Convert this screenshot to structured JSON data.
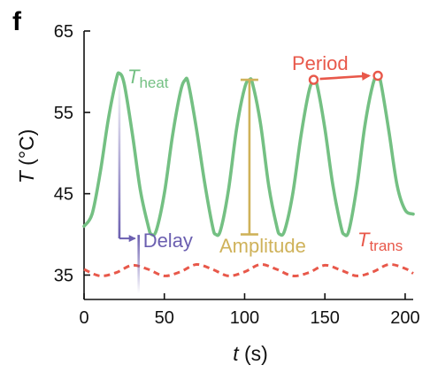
{
  "panel_label": "f",
  "colors": {
    "heat": "#74c083",
    "trans": "#e8584a",
    "period": "#e8584a",
    "delay": "#6b5fb0",
    "amplitude": "#cfb25a",
    "axis": "#111111"
  },
  "chart_data": {
    "type": "line",
    "xlabel": "t (s)",
    "xlabel_var": "t",
    "xlabel_unit": " (s)",
    "ylabel": "T (°C)",
    "ylabel_var": "T",
    "ylabel_unit": " (°C)",
    "xlim": [
      0,
      205
    ],
    "ylim": [
      32,
      65
    ],
    "x_ticks": [
      0,
      50,
      100,
      150,
      200
    ],
    "y_ticks": [
      35,
      45,
      55,
      65
    ],
    "grid": false,
    "series": [
      {
        "name": "T_heat",
        "label_main": "T",
        "label_sub": "heat",
        "style": "solid",
        "x": [
          0,
          5,
          10,
          15,
          20,
          22,
          25,
          30,
          35,
          40,
          42,
          45,
          50,
          55,
          60,
          63,
          65,
          70,
          75,
          80,
          82,
          85,
          90,
          95,
          100,
          103,
          105,
          110,
          115,
          120,
          122,
          125,
          130,
          135,
          140,
          143,
          145,
          150,
          155,
          160,
          162,
          165,
          170,
          175,
          180,
          183,
          185,
          190,
          195,
          200,
          205
        ],
        "y": [
          41.0,
          42.5,
          47.5,
          54.0,
          59.0,
          59.8,
          58.5,
          52.5,
          45.5,
          41.0,
          40.0,
          40.5,
          45.0,
          52.0,
          57.5,
          59.0,
          58.5,
          53.0,
          46.5,
          41.0,
          40.0,
          40.5,
          45.5,
          53.0,
          58.0,
          59.0,
          58.5,
          53.5,
          46.0,
          41.0,
          40.0,
          40.5,
          45.0,
          52.0,
          57.5,
          59.0,
          58.5,
          53.0,
          46.0,
          41.0,
          40.0,
          40.5,
          46.0,
          53.5,
          58.5,
          59.5,
          58.5,
          52.5,
          46.0,
          43.0,
          42.5
        ]
      },
      {
        "name": "T_trans",
        "label_main": "T",
        "label_sub": "trans",
        "style": "dashed",
        "x": [
          0,
          10,
          20,
          30,
          40,
          50,
          60,
          70,
          80,
          90,
          100,
          110,
          120,
          130,
          140,
          150,
          160,
          170,
          180,
          190,
          200,
          205
        ],
        "y": [
          35.7,
          34.9,
          35.3,
          36.2,
          35.7,
          34.9,
          35.4,
          36.3,
          35.7,
          34.9,
          35.4,
          36.3,
          35.7,
          34.9,
          35.3,
          36.2,
          35.6,
          34.9,
          35.4,
          36.3,
          35.8,
          35.2
        ]
      }
    ],
    "annotations": {
      "period": {
        "label": "Period",
        "from": [
          143,
          59.0
        ],
        "to": [
          183,
          59.5
        ]
      },
      "amplitude": {
        "label": "Amplitude",
        "x": 103,
        "y_top": 59.0,
        "y_bottom": 40.0
      },
      "delay": {
        "label": "Delay",
        "x_heat": 22,
        "y_heat_peak": 59.8,
        "y_turn": 39.5,
        "x_trans": 34,
        "y_trans": 36.0
      }
    }
  }
}
